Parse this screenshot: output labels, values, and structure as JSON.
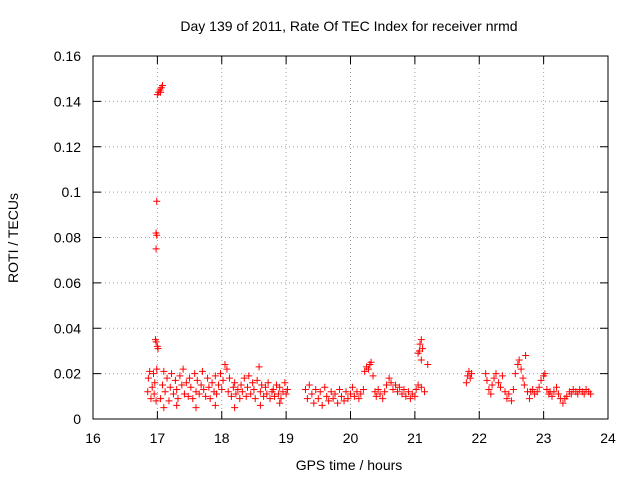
{
  "chart_data": {
    "type": "scatter",
    "title": "Day 139 of 2011, Rate Of TEC Index for receiver nrmd",
    "xlabel": "GPS time / hours",
    "ylabel": "ROTI / TECUs",
    "xlim": [
      16,
      24
    ],
    "ylim": [
      0,
      0.16
    ],
    "x_ticks": [
      "16",
      "17",
      "18",
      "19",
      "20",
      "21",
      "22",
      "23",
      "24"
    ],
    "y_ticks": [
      "0",
      "0.02",
      "0.04",
      "0.06",
      "0.08",
      "0.1",
      "0.12",
      "0.14",
      "0.16"
    ],
    "grid": true,
    "marker": "+",
    "color": "#ff0000",
    "points": [
      [
        16.85,
        0.012
      ],
      [
        16.86,
        0.018
      ],
      [
        16.88,
        0.021
      ],
      [
        16.9,
        0.009
      ],
      [
        16.92,
        0.014
      ],
      [
        16.94,
        0.02
      ],
      [
        16.95,
        0.011
      ],
      [
        16.96,
        0.016
      ],
      [
        16.98,
        0.008
      ],
      [
        16.99,
        0.022
      ],
      [
        16.97,
        0.035
      ],
      [
        16.98,
        0.034
      ],
      [
        17.0,
        0.032
      ],
      [
        17.01,
        0.031
      ],
      [
        16.98,
        0.082
      ],
      [
        16.99,
        0.081
      ],
      [
        16.98,
        0.075
      ],
      [
        16.99,
        0.096
      ],
      [
        17.0,
        0.143
      ],
      [
        17.02,
        0.144
      ],
      [
        17.04,
        0.145
      ],
      [
        17.06,
        0.146
      ],
      [
        17.08,
        0.147
      ],
      [
        17.05,
        0.144
      ],
      [
        17.05,
        0.009
      ],
      [
        17.08,
        0.015
      ],
      [
        17.1,
        0.021
      ],
      [
        17.12,
        0.012
      ],
      [
        17.15,
        0.018
      ],
      [
        17.18,
        0.008
      ],
      [
        17.2,
        0.014
      ],
      [
        17.22,
        0.02
      ],
      [
        17.25,
        0.011
      ],
      [
        17.28,
        0.017
      ],
      [
        17.3,
        0.013
      ],
      [
        17.32,
        0.009
      ],
      [
        17.35,
        0.019
      ],
      [
        17.38,
        0.015
      ],
      [
        17.4,
        0.022
      ],
      [
        17.42,
        0.011
      ],
      [
        17.45,
        0.016
      ],
      [
        17.48,
        0.01
      ],
      [
        17.5,
        0.018
      ],
      [
        17.52,
        0.014
      ],
      [
        17.55,
        0.009
      ],
      [
        17.58,
        0.02
      ],
      [
        17.6,
        0.012
      ],
      [
        17.62,
        0.017
      ],
      [
        17.65,
        0.011
      ],
      [
        17.68,
        0.015
      ],
      [
        17.7,
        0.021
      ],
      [
        17.72,
        0.013
      ],
      [
        17.75,
        0.01
      ],
      [
        17.78,
        0.018
      ],
      [
        17.8,
        0.014
      ],
      [
        17.82,
        0.009
      ],
      [
        17.85,
        0.016
      ],
      [
        17.88,
        0.012
      ],
      [
        17.9,
        0.019
      ],
      [
        17.92,
        0.011
      ],
      [
        17.95,
        0.015
      ],
      [
        17.98,
        0.02
      ],
      [
        18.0,
        0.013
      ],
      [
        18.02,
        0.017
      ],
      [
        18.05,
        0.024
      ],
      [
        18.08,
        0.022
      ],
      [
        18.1,
        0.012
      ],
      [
        18.12,
        0.018
      ],
      [
        18.15,
        0.01
      ],
      [
        18.18,
        0.014
      ],
      [
        18.2,
        0.016
      ],
      [
        18.22,
        0.011
      ],
      [
        18.25,
        0.013
      ],
      [
        18.28,
        0.009
      ],
      [
        18.3,
        0.015
      ],
      [
        18.32,
        0.012
      ],
      [
        18.35,
        0.018
      ],
      [
        18.38,
        0.01
      ],
      [
        18.4,
        0.014
      ],
      [
        18.42,
        0.019
      ],
      [
        18.45,
        0.011
      ],
      [
        18.48,
        0.016
      ],
      [
        18.5,
        0.013
      ],
      [
        18.52,
        0.009
      ],
      [
        18.55,
        0.017
      ],
      [
        18.58,
        0.023
      ],
      [
        18.6,
        0.012
      ],
      [
        18.62,
        0.015
      ],
      [
        18.65,
        0.01
      ],
      [
        18.68,
        0.014
      ],
      [
        18.7,
        0.011
      ],
      [
        18.72,
        0.016
      ],
      [
        18.75,
        0.009
      ],
      [
        18.78,
        0.012
      ],
      [
        18.8,
        0.013
      ],
      [
        18.82,
        0.01
      ],
      [
        18.85,
        0.015
      ],
      [
        18.88,
        0.011
      ],
      [
        18.9,
        0.014
      ],
      [
        18.92,
        0.009
      ],
      [
        18.95,
        0.012
      ],
      [
        18.98,
        0.016
      ],
      [
        19.0,
        0.011
      ],
      [
        19.02,
        0.013
      ],
      [
        17.1,
        0.005
      ],
      [
        17.3,
        0.006
      ],
      [
        17.6,
        0.005
      ],
      [
        17.9,
        0.006
      ],
      [
        18.2,
        0.005
      ],
      [
        18.6,
        0.006
      ],
      [
        18.9,
        0.007
      ],
      [
        19.3,
        0.013
      ],
      [
        19.33,
        0.009
      ],
      [
        19.36,
        0.015
      ],
      [
        19.4,
        0.011
      ],
      [
        19.43,
        0.007
      ],
      [
        19.46,
        0.013
      ],
      [
        19.5,
        0.009
      ],
      [
        19.53,
        0.012
      ],
      [
        19.56,
        0.006
      ],
      [
        19.6,
        0.014
      ],
      [
        19.63,
        0.01
      ],
      [
        19.66,
        0.008
      ],
      [
        19.7,
        0.012
      ],
      [
        19.73,
        0.009
      ],
      [
        19.76,
        0.011
      ],
      [
        19.8,
        0.007
      ],
      [
        19.83,
        0.013
      ],
      [
        19.86,
        0.01
      ],
      [
        19.9,
        0.008
      ],
      [
        19.93,
        0.012
      ],
      [
        19.96,
        0.009
      ],
      [
        20.0,
        0.011
      ],
      [
        20.03,
        0.014
      ],
      [
        20.06,
        0.01
      ],
      [
        20.1,
        0.012
      ],
      [
        20.13,
        0.009
      ],
      [
        20.16,
        0.011
      ],
      [
        20.2,
        0.013
      ],
      [
        20.22,
        0.021
      ],
      [
        20.25,
        0.023
      ],
      [
        20.28,
        0.022
      ],
      [
        20.3,
        0.024
      ],
      [
        20.32,
        0.025
      ],
      [
        20.35,
        0.019
      ],
      [
        20.38,
        0.012
      ],
      [
        20.4,
        0.01
      ],
      [
        20.43,
        0.013
      ],
      [
        20.46,
        0.011
      ],
      [
        20.5,
        0.009
      ],
      [
        20.53,
        0.012
      ],
      [
        20.56,
        0.015
      ],
      [
        20.6,
        0.018
      ],
      [
        20.63,
        0.016
      ],
      [
        20.66,
        0.013
      ],
      [
        20.7,
        0.015
      ],
      [
        20.73,
        0.012
      ],
      [
        20.76,
        0.014
      ],
      [
        20.8,
        0.011
      ],
      [
        20.83,
        0.013
      ],
      [
        20.86,
        0.01
      ],
      [
        20.9,
        0.012
      ],
      [
        20.93,
        0.009
      ],
      [
        20.96,
        0.011
      ],
      [
        21.0,
        0.01
      ],
      [
        21.02,
        0.013
      ],
      [
        21.05,
        0.015
      ],
      [
        21.1,
        0.014
      ],
      [
        21.15,
        0.012
      ],
      [
        21.05,
        0.029
      ],
      [
        21.07,
        0.03
      ],
      [
        21.08,
        0.033
      ],
      [
        21.1,
        0.035
      ],
      [
        21.12,
        0.031
      ],
      [
        21.1,
        0.026
      ],
      [
        21.2,
        0.024
      ],
      [
        21.8,
        0.016
      ],
      [
        21.82,
        0.019
      ],
      [
        21.84,
        0.021
      ],
      [
        21.86,
        0.018
      ],
      [
        21.88,
        0.02
      ],
      [
        22.1,
        0.02
      ],
      [
        22.12,
        0.017
      ],
      [
        22.15,
        0.013
      ],
      [
        22.18,
        0.011
      ],
      [
        22.2,
        0.015
      ],
      [
        22.23,
        0.018
      ],
      [
        22.26,
        0.02
      ],
      [
        22.3,
        0.016
      ],
      [
        22.33,
        0.014
      ],
      [
        22.36,
        0.019
      ],
      [
        22.4,
        0.012
      ],
      [
        22.43,
        0.009
      ],
      [
        22.46,
        0.011
      ],
      [
        22.5,
        0.008
      ],
      [
        22.53,
        0.013
      ],
      [
        22.56,
        0.02
      ],
      [
        22.6,
        0.024
      ],
      [
        22.62,
        0.026
      ],
      [
        22.65,
        0.022
      ],
      [
        22.68,
        0.018
      ],
      [
        22.7,
        0.015
      ],
      [
        22.72,
        0.028
      ],
      [
        22.75,
        0.012
      ],
      [
        22.78,
        0.009
      ],
      [
        22.8,
        0.012
      ],
      [
        22.83,
        0.013
      ],
      [
        22.86,
        0.011
      ],
      [
        22.9,
        0.012
      ],
      [
        22.93,
        0.014
      ],
      [
        22.96,
        0.017
      ],
      [
        23.0,
        0.019
      ],
      [
        23.02,
        0.02
      ],
      [
        23.05,
        0.013
      ],
      [
        23.08,
        0.011
      ],
      [
        23.1,
        0.012
      ],
      [
        23.13,
        0.01
      ],
      [
        23.16,
        0.012
      ],
      [
        23.2,
        0.014
      ],
      [
        23.23,
        0.011
      ],
      [
        23.26,
        0.009
      ],
      [
        23.3,
        0.007
      ],
      [
        23.33,
        0.009
      ],
      [
        23.36,
        0.01
      ],
      [
        23.4,
        0.012
      ],
      [
        23.43,
        0.011
      ],
      [
        23.46,
        0.013
      ],
      [
        23.5,
        0.012
      ],
      [
        23.53,
        0.011
      ],
      [
        23.56,
        0.013
      ],
      [
        23.6,
        0.012
      ],
      [
        23.63,
        0.011
      ],
      [
        23.66,
        0.013
      ],
      [
        23.7,
        0.012
      ],
      [
        23.73,
        0.011
      ]
    ]
  }
}
